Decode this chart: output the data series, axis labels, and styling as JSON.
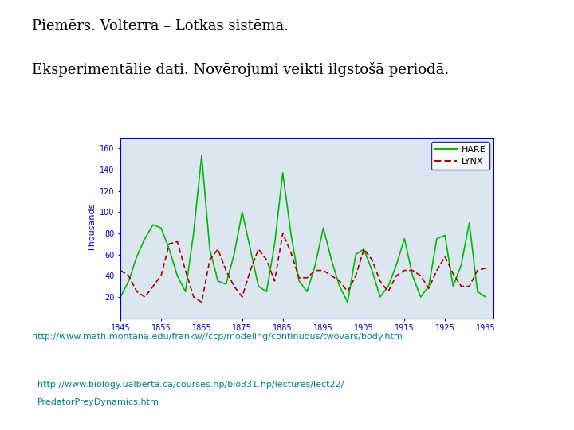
{
  "title1": "Piemērs. Volterra – Lotkas sistēma.",
  "title2": "Eksperimentālie dati. Novērojumi veikti ilgstošā periodā.",
  "link1": "http://www.math.montana.edu/frankw//ccp/modeling/continuous/twovars/body.htm",
  "link2_line1": "http://www.biology.ualberta.ca/courses.hp/bio331.hp/lectures/lect22/",
  "link2_line2": "PredatorPreyDynamics.htm",
  "background_color": "#ffffff",
  "title_color": "#000000",
  "link_color": "#008080",
  "chart_bg": "#dce6f1",
  "hare_color": "#00bb00",
  "lynx_color": "#aa0000",
  "ylabel": "Thousands",
  "ylabel_color": "#0000cc",
  "axis_color": "#0000cc",
  "x_years": [
    1845,
    1855,
    1865,
    1875,
    1885,
    1895,
    1905,
    1915,
    1925,
    1935
  ],
  "ylim": [
    0,
    170
  ],
  "yticks": [
    20,
    40,
    60,
    80,
    100,
    120,
    140,
    160
  ],
  "hare_data": {
    "years": [
      1845,
      1847,
      1849,
      1851,
      1853,
      1855,
      1857,
      1859,
      1861,
      1863,
      1865,
      1867,
      1869,
      1871,
      1873,
      1875,
      1877,
      1879,
      1881,
      1883,
      1885,
      1887,
      1889,
      1891,
      1893,
      1895,
      1897,
      1899,
      1901,
      1903,
      1905,
      1907,
      1909,
      1911,
      1913,
      1915,
      1917,
      1919,
      1921,
      1923,
      1925,
      1927,
      1929,
      1931,
      1933,
      1935
    ],
    "values": [
      20,
      35,
      58,
      75,
      88,
      85,
      65,
      40,
      25,
      80,
      153,
      65,
      35,
      32,
      60,
      100,
      65,
      30,
      25,
      70,
      137,
      80,
      35,
      25,
      50,
      85,
      55,
      30,
      15,
      60,
      65,
      45,
      20,
      30,
      50,
      75,
      40,
      20,
      30,
      75,
      78,
      30,
      50,
      90,
      25,
      20
    ]
  },
  "lynx_data": {
    "years": [
      1845,
      1847,
      1849,
      1851,
      1853,
      1855,
      1857,
      1859,
      1861,
      1863,
      1865,
      1867,
      1869,
      1871,
      1873,
      1875,
      1877,
      1879,
      1881,
      1883,
      1885,
      1887,
      1889,
      1891,
      1893,
      1895,
      1897,
      1899,
      1901,
      1903,
      1905,
      1907,
      1909,
      1911,
      1913,
      1915,
      1917,
      1919,
      1921,
      1923,
      1925,
      1927,
      1929,
      1931,
      1933,
      1935
    ],
    "values": [
      45,
      40,
      25,
      20,
      30,
      40,
      70,
      72,
      45,
      20,
      15,
      55,
      65,
      45,
      30,
      20,
      45,
      65,
      55,
      35,
      80,
      62,
      38,
      38,
      45,
      45,
      40,
      35,
      25,
      40,
      65,
      55,
      35,
      25,
      40,
      45,
      45,
      40,
      28,
      45,
      58,
      42,
      30,
      30,
      45,
      47
    ]
  }
}
